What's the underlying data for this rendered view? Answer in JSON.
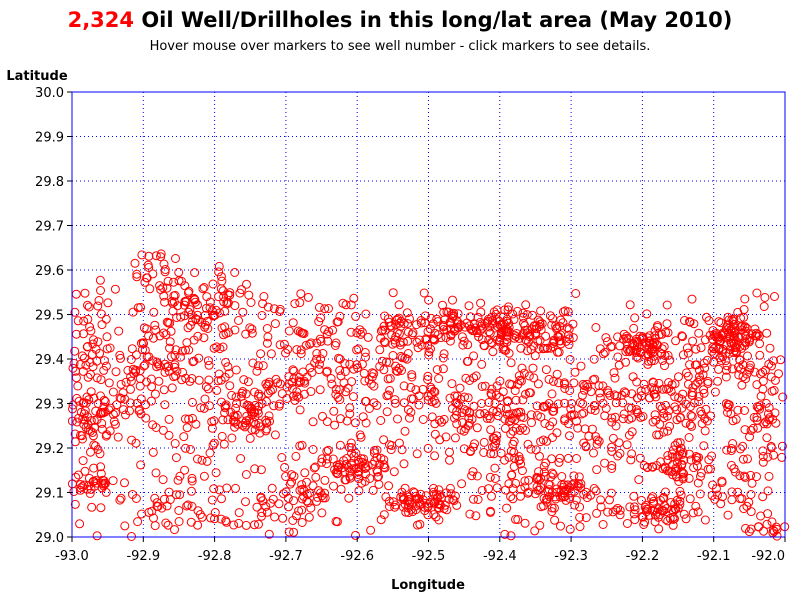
{
  "header": {
    "title_count": "2,324",
    "title_rest": "Oil Well/Drillholes in this long/lat area (May 2010)",
    "subtitle": "Hover mouse over markers to see well number - click markers to see details."
  },
  "colors": {
    "marker": "#ff0000",
    "frame": "#0000ff",
    "grid": "#0000ff",
    "count": "#ff0000"
  },
  "chart_data": {
    "type": "scatter",
    "xlabel": "Longitude",
    "ylabel": "Latitude",
    "xlim": [
      -93.0,
      -92.0
    ],
    "ylim": [
      29.0,
      30.0
    ],
    "x_ticks": [
      "-93.0",
      "-92.9",
      "-92.8",
      "-92.7",
      "-92.6",
      "-92.5",
      "-92.4",
      "-92.3",
      "-92.2",
      "-92.1",
      "-92.0"
    ],
    "y_ticks": [
      "29.0",
      "29.1",
      "29.2",
      "29.3",
      "29.4",
      "29.5",
      "29.6",
      "29.7",
      "29.8",
      "29.9",
      "30.0"
    ],
    "grid": true,
    "marker": "open-circle",
    "total_points": 2324,
    "clusters": [
      {
        "x": -92.975,
        "y": 29.35,
        "sx": 0.02,
        "sy": 0.08,
        "n": 90
      },
      {
        "x": -92.97,
        "y": 29.12,
        "sx": 0.015,
        "sy": 0.015,
        "n": 30
      },
      {
        "x": -92.88,
        "y": 29.58,
        "sx": 0.025,
        "sy": 0.03,
        "n": 35
      },
      {
        "x": -92.86,
        "y": 29.42,
        "sx": 0.04,
        "sy": 0.05,
        "n": 60
      },
      {
        "x": -92.9,
        "y": 29.3,
        "sx": 0.04,
        "sy": 0.06,
        "n": 45
      },
      {
        "x": -92.86,
        "y": 29.08,
        "sx": 0.04,
        "sy": 0.04,
        "n": 35
      },
      {
        "x": -92.8,
        "y": 29.52,
        "sx": 0.03,
        "sy": 0.04,
        "n": 70
      },
      {
        "x": -92.8,
        "y": 29.3,
        "sx": 0.035,
        "sy": 0.07,
        "n": 40
      },
      {
        "x": -92.75,
        "y": 29.27,
        "sx": 0.02,
        "sy": 0.03,
        "n": 50
      },
      {
        "x": -92.76,
        "y": 29.05,
        "sx": 0.03,
        "sy": 0.02,
        "n": 20
      },
      {
        "x": -92.69,
        "y": 29.35,
        "sx": 0.03,
        "sy": 0.04,
        "n": 45
      },
      {
        "x": -92.67,
        "y": 29.1,
        "sx": 0.025,
        "sy": 0.03,
        "n": 40
      },
      {
        "x": -92.66,
        "y": 29.45,
        "sx": 0.03,
        "sy": 0.04,
        "n": 35
      },
      {
        "x": -92.6,
        "y": 29.16,
        "sx": 0.025,
        "sy": 0.025,
        "n": 75
      },
      {
        "x": -92.6,
        "y": 29.35,
        "sx": 0.04,
        "sy": 0.04,
        "n": 40
      },
      {
        "x": -92.53,
        "y": 29.45,
        "sx": 0.04,
        "sy": 0.03,
        "n": 70
      },
      {
        "x": -92.51,
        "y": 29.08,
        "sx": 0.025,
        "sy": 0.015,
        "n": 70
      },
      {
        "x": -92.52,
        "y": 29.28,
        "sx": 0.04,
        "sy": 0.07,
        "n": 50
      },
      {
        "x": -92.47,
        "y": 29.48,
        "sx": 0.02,
        "sy": 0.015,
        "n": 30
      },
      {
        "x": -92.43,
        "y": 29.28,
        "sx": 0.03,
        "sy": 0.05,
        "n": 45
      },
      {
        "x": -92.395,
        "y": 29.46,
        "sx": 0.035,
        "sy": 0.02,
        "n": 110
      },
      {
        "x": -92.38,
        "y": 29.3,
        "sx": 0.04,
        "sy": 0.05,
        "n": 70
      },
      {
        "x": -92.37,
        "y": 29.13,
        "sx": 0.035,
        "sy": 0.05,
        "n": 45
      },
      {
        "x": -92.33,
        "y": 29.45,
        "sx": 0.025,
        "sy": 0.03,
        "n": 40
      },
      {
        "x": -92.31,
        "y": 29.1,
        "sx": 0.025,
        "sy": 0.02,
        "n": 55
      },
      {
        "x": -92.3,
        "y": 29.3,
        "sx": 0.035,
        "sy": 0.05,
        "n": 50
      },
      {
        "x": -92.25,
        "y": 29.15,
        "sx": 0.03,
        "sy": 0.08,
        "n": 25
      },
      {
        "x": -92.19,
        "y": 29.43,
        "sx": 0.03,
        "sy": 0.02,
        "n": 80
      },
      {
        "x": -92.19,
        "y": 29.3,
        "sx": 0.04,
        "sy": 0.05,
        "n": 70
      },
      {
        "x": -92.18,
        "y": 29.06,
        "sx": 0.025,
        "sy": 0.02,
        "n": 60
      },
      {
        "x": -92.15,
        "y": 29.16,
        "sx": 0.02,
        "sy": 0.02,
        "n": 45
      },
      {
        "x": -92.1,
        "y": 29.32,
        "sx": 0.04,
        "sy": 0.05,
        "n": 60
      },
      {
        "x": -92.07,
        "y": 29.44,
        "sx": 0.02,
        "sy": 0.03,
        "n": 115
      },
      {
        "x": -92.08,
        "y": 29.1,
        "sx": 0.03,
        "sy": 0.04,
        "n": 25
      },
      {
        "x": -92.03,
        "y": 29.28,
        "sx": 0.025,
        "sy": 0.08,
        "n": 35
      },
      {
        "x": -92.02,
        "y": 29.02,
        "sx": 0.015,
        "sy": 0.015,
        "n": 15
      }
    ]
  }
}
